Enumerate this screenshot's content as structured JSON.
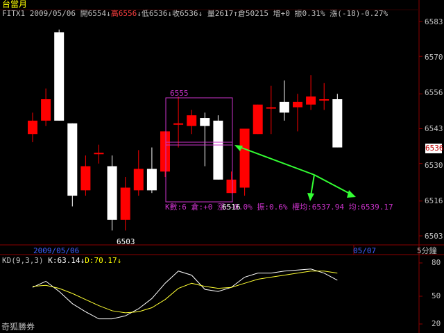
{
  "app": {
    "title": "台當月",
    "brand": "奇狐勝券"
  },
  "quote": {
    "symbol_date": "FITX1 2009/05/06",
    "open_label": "開6554",
    "open_arrow": "↓",
    "high_label": "高6556",
    "high_arrow": "↓",
    "low_label": "低6536",
    "low_arrow": "↓",
    "close_label": "收6536",
    "close_arrow": "↓",
    "volume_label": "量2617",
    "volume_arrow": "↑",
    "oi_label": "倉50215",
    "oi_change_label": "增+0",
    "amplitude_label": "振0.31%",
    "change_label": "漲(-18)-0.27%"
  },
  "price_axis": {
    "ticks": [
      "6583",
      "6570",
      "6556",
      "6543",
      "6530",
      "6516",
      "6503"
    ],
    "current_price": "6536"
  },
  "time_axis": {
    "date_label": "2009/05/06",
    "next_date_label": "05/07",
    "period_label": "5分鐘"
  },
  "annotations": {
    "box_high": "6555",
    "box_low": "6516",
    "chart_high": "6503",
    "stats_line": "K數:6 倉:+0 漲:-0.0% 振:0.6% 權均:6537.94 均:6539.17"
  },
  "kd": {
    "label": "KD(9,3,3)",
    "k_label": "K:63.14",
    "k_arrow": "↓",
    "d_label": "D:70.17",
    "d_arrow": "↓",
    "ticks": [
      "80",
      "50",
      "20"
    ]
  },
  "colors": {
    "up": "#ff0000",
    "down": "#ffffff",
    "axis": "#8b0000",
    "select_box": "#cc33cc",
    "arrow": "#33ff33",
    "k_line": "#ffffff",
    "d_line": "#ffff33",
    "label_yellow": "#ffff00",
    "label_red": "#ff4040",
    "info_text": "#c0c0c0"
  },
  "candles": [
    {
      "o": 6541,
      "c": 6546,
      "h": 6549,
      "l": 6538
    },
    {
      "o": 6546,
      "c": 6554,
      "h": 6558,
      "l": 6544
    },
    {
      "o": 6579,
      "c": 6546,
      "h": 6580,
      "l": 6546
    },
    {
      "o": 6545,
      "c": 6518,
      "h": 6545,
      "l": 6514
    },
    {
      "o": 6520,
      "c": 6529,
      "h": 6533,
      "l": 6518
    },
    {
      "o": 6534,
      "c": 6534,
      "h": 6537,
      "l": 6530
    },
    {
      "o": 6529,
      "c": 6509,
      "h": 6533,
      "l": 6505
    },
    {
      "o": 6509,
      "c": 6521,
      "h": 6525,
      "l": 6505
    },
    {
      "o": 6520,
      "c": 6528,
      "h": 6535,
      "l": 6518
    },
    {
      "o": 6528,
      "c": 6520,
      "h": 6536,
      "l": 6519
    },
    {
      "o": 6527,
      "c": 6542,
      "h": 6542,
      "l": 6525
    },
    {
      "o": 6545,
      "c": 6545,
      "h": 6555,
      "l": 6536
    },
    {
      "o": 6544,
      "c": 6548,
      "h": 6550,
      "l": 6541
    },
    {
      "o": 6547,
      "c": 6544,
      "h": 6549,
      "l": 6529
    },
    {
      "o": 6546,
      "c": 6524,
      "h": 6548,
      "l": 6524
    },
    {
      "o": 6519,
      "c": 6524,
      "h": 6527,
      "l": 6519
    },
    {
      "o": 6521,
      "c": 6543,
      "h": 6543,
      "l": 6518
    },
    {
      "o": 6541,
      "c": 6552,
      "h": 6552,
      "l": 6541
    },
    {
      "o": 6551,
      "c": 6551,
      "h": 6559,
      "l": 6541
    },
    {
      "o": 6553,
      "c": 6549,
      "h": 6561,
      "l": 6546
    },
    {
      "o": 6551,
      "c": 6553,
      "h": 6556,
      "l": 6542
    },
    {
      "o": 6552,
      "c": 6555,
      "h": 6563,
      "l": 6550
    },
    {
      "o": 6554,
      "c": 6554,
      "h": 6560,
      "l": 6550
    },
    {
      "o": 6554,
      "c": 6536,
      "h": 6556,
      "l": 6536
    }
  ],
  "kd_k": [
    56,
    62,
    52,
    40,
    32,
    25,
    25,
    28,
    35,
    45,
    60,
    72,
    68,
    54,
    52,
    56,
    66,
    70,
    70,
    72,
    73,
    74,
    70,
    63
  ],
  "kd_d": [
    57,
    58,
    55,
    50,
    44,
    38,
    33,
    31,
    32,
    36,
    44,
    55,
    60,
    57,
    55,
    56,
    60,
    64,
    66,
    68,
    70,
    72,
    72,
    70
  ]
}
